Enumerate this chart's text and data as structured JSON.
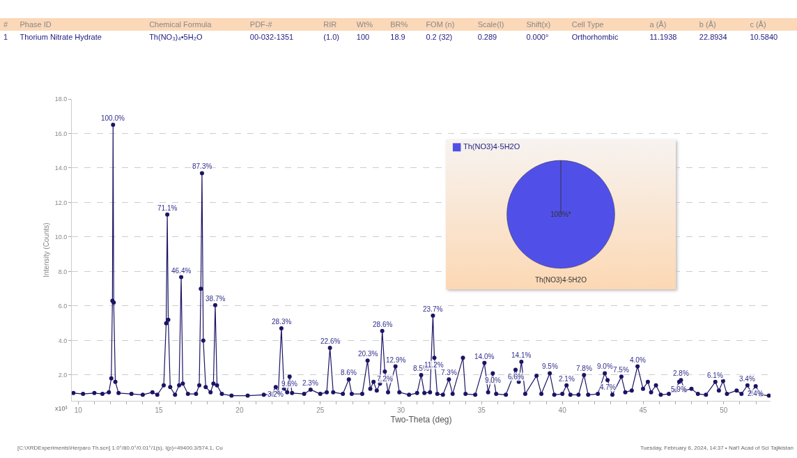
{
  "chart_data": [
    {
      "type": "other",
      "categories": [
        "#",
        "Phase ID",
        "Chemical Formula",
        "PDF-#",
        "RIR",
        "Wt%",
        "BR%",
        "FOM (n)",
        "Scale(I)",
        "Shift(x)",
        "Cell Type",
        "a (Å)",
        "b (Å)",
        "c (Å)"
      ],
      "annotations": [
        "1",
        "Thorium Nitrate Hydrate",
        "Th(NO₃)₄•5H₂O",
        "00-032-1351",
        "(1.0)",
        "100",
        "18.9",
        "0.2 (32)",
        "0.289",
        "0.000°",
        "Orthorhombic",
        "11.1938",
        "22.8934",
        "10.5840"
      ]
    },
    {
      "type": "line",
      "xlabel": "Two-Theta (deg)",
      "ylabel": "Intensity (Counts)",
      "grid": "y",
      "marker": "circle",
      "line_style": "solid",
      "x": [
        9.7,
        10.3,
        11.0,
        11.5,
        11.9,
        12.05,
        12.12,
        12.16,
        12.2,
        12.3,
        12.5,
        13.3,
        14.0,
        14.6,
        14.9,
        15.3,
        15.45,
        15.52,
        15.58,
        15.7,
        16.0,
        16.25,
        16.38,
        16.48,
        16.8,
        17.3,
        17.5,
        17.6,
        17.67,
        17.75,
        17.9,
        18.2,
        18.38,
        18.49,
        18.6,
        18.9,
        19.5,
        20.5,
        21.5,
        22.0,
        22.24,
        22.4,
        22.59,
        22.75,
        22.95,
        23.1,
        23.25,
        24.0,
        24.4,
        25.0,
        25.4,
        25.6,
        25.8,
        26.4,
        26.77,
        26.95,
        27.6,
        27.93,
        28.1,
        28.3,
        28.5,
        28.7,
        28.84,
        29.0,
        29.2,
        29.66,
        29.9,
        30.5,
        31.0,
        31.25,
        31.45,
        31.8,
        31.98,
        32.07,
        32.25,
        32.6,
        32.97,
        33.2,
        33.84,
        34.0,
        34.6,
        35.17,
        35.4,
        35.69,
        35.9,
        36.5,
        37.1,
        37.3,
        37.46,
        37.7,
        38.4,
        38.7,
        39.22,
        39.5,
        40.0,
        40.26,
        40.5,
        41.0,
        41.34,
        41.6,
        42.2,
        42.63,
        42.8,
        43.1,
        43.66,
        43.9,
        44.3,
        44.66,
        45.0,
        45.3,
        45.5,
        45.8,
        46.1,
        46.6,
        47.0,
        47.24,
        47.35,
        47.6,
        48.0,
        48.4,
        48.9,
        49.48,
        49.7,
        49.96,
        50.2,
        50.8,
        51.1,
        51.47,
        51.7,
        51.98,
        52.3,
        52.8
      ],
      "series": [
        {
          "color": "#1b1464",
          "values": [
            0.95,
            0.9,
            0.95,
            0.9,
            1.0,
            1.8,
            6.3,
            16.5,
            6.2,
            1.6,
            0.95,
            0.9,
            0.85,
            1.0,
            0.85,
            1.4,
            5.0,
            11.3,
            5.2,
            1.3,
            0.85,
            1.4,
            7.67,
            1.5,
            0.9,
            0.9,
            1.4,
            7.0,
            13.7,
            4.0,
            1.3,
            1.0,
            1.5,
            6.05,
            1.4,
            0.9,
            0.8,
            0.8,
            0.85,
            0.9,
            1.3,
            1.0,
            4.7,
            1.2,
            1.0,
            1.9,
            0.95,
            0.9,
            1.15,
            0.9,
            1.0,
            3.57,
            1.0,
            0.9,
            1.74,
            0.9,
            0.9,
            2.83,
            1.2,
            1.6,
            1.1,
            1.5,
            4.55,
            2.2,
            1.0,
            2.5,
            1.0,
            0.85,
            0.95,
            2.0,
            0.95,
            1.0,
            5.44,
            3.0,
            0.9,
            0.85,
            1.74,
            0.9,
            3.0,
            0.9,
            0.85,
            2.7,
            1.0,
            2.1,
            0.9,
            0.85,
            2.3,
            1.6,
            2.76,
            0.9,
            1.95,
            0.9,
            2.1,
            0.85,
            0.9,
            1.4,
            0.85,
            0.85,
            2.0,
            0.85,
            0.9,
            2.1,
            1.7,
            0.85,
            1.9,
            1.0,
            1.1,
            2.5,
            1.2,
            1.6,
            1.0,
            1.4,
            0.85,
            0.9,
            1.1,
            1.6,
            1.7,
            1.1,
            1.2,
            0.9,
            0.85,
            1.6,
            1.1,
            1.65,
            0.9,
            1.1,
            0.9,
            1.4,
            1.0,
            1.35,
            0.85,
            0.8
          ]
        }
      ],
      "xlim": [
        9.6,
        52.9
      ],
      "xticks": [
        {
          "value": 10,
          "label": "10"
        },
        {
          "value": 11,
          "label": null
        },
        {
          "value": 12,
          "label": null
        },
        {
          "value": 13,
          "label": null
        },
        {
          "value": 14,
          "label": null
        },
        {
          "value": 15,
          "label": "15"
        },
        {
          "value": 16,
          "label": null
        },
        {
          "value": 17,
          "label": null
        },
        {
          "value": 18,
          "label": null
        },
        {
          "value": 19,
          "label": null
        },
        {
          "value": 20,
          "label": "20"
        },
        {
          "value": 21,
          "label": null
        },
        {
          "value": 22,
          "label": null
        },
        {
          "value": 23,
          "label": null
        },
        {
          "value": 24,
          "label": null
        },
        {
          "value": 25,
          "label": "25"
        },
        {
          "value": 26,
          "label": null
        },
        {
          "value": 27,
          "label": null
        },
        {
          "value": 28,
          "label": null
        },
        {
          "value": 29,
          "label": null
        },
        {
          "value": 30,
          "label": "30"
        },
        {
          "value": 31,
          "label": null
        },
        {
          "value": 32,
          "label": null
        },
        {
          "value": 33,
          "label": null
        },
        {
          "value": 34,
          "label": null
        },
        {
          "value": 35,
          "label": "35"
        },
        {
          "value": 36,
          "label": null
        },
        {
          "value": 37,
          "label": null
        },
        {
          "value": 38,
          "label": null
        },
        {
          "value": 39,
          "label": null
        },
        {
          "value": 40,
          "label": "40"
        },
        {
          "value": 41,
          "label": null
        },
        {
          "value": 42,
          "label": null
        },
        {
          "value": 43,
          "label": null
        },
        {
          "value": 44,
          "label": null
        },
        {
          "value": 45,
          "label": "45"
        },
        {
          "value": 46,
          "label": null
        },
        {
          "value": 47,
          "label": null
        },
        {
          "value": 48,
          "label": null
        },
        {
          "value": 49,
          "label": null
        },
        {
          "value": 50,
          "label": "50"
        },
        {
          "value": 51,
          "label": null
        },
        {
          "value": 52,
          "label": null
        }
      ],
      "ylim": [
        0.5,
        18.0
      ],
      "yticks": [
        {
          "value": 2,
          "label": "2.0"
        },
        {
          "value": 4,
          "label": "4.0"
        },
        {
          "value": 6,
          "label": "6.0"
        },
        {
          "value": 8,
          "label": "8.0"
        },
        {
          "value": 10,
          "label": "10.0"
        },
        {
          "value": 12,
          "label": "12.0"
        },
        {
          "value": 14,
          "label": "14.0"
        },
        {
          "value": 16,
          "label": "16.0"
        },
        {
          "value": 18,
          "label": "18.0"
        }
      ],
      "annotations": [
        "x10³",
        "[C:\\XRDExperiments\\Herparo Th.scn] 1.0°/80.0°/0.01°/1(s), I(p)=49400.3/574.1, Cu",
        "Tuesday, February 6, 2024, 14:37 • Nat'l Acad of Sci Tajikistan",
        {
          "text": "100.0%",
          "x": 12.16,
          "y": 16.5
        },
        {
          "text": "71.1%",
          "x": 15.52,
          "y": 11.3
        },
        {
          "text": "46.4%",
          "x": 16.38,
          "y": 7.67
        },
        {
          "text": "87.3%",
          "x": 17.67,
          "y": 13.7
        },
        {
          "text": "38.7%",
          "x": 18.49,
          "y": 6.05
        },
        {
          "text": "3.2%",
          "x": 22.24,
          "y": 1.3
        },
        {
          "text": "28.3%",
          "x": 22.59,
          "y": 4.7
        },
        {
          "text": "9.6%",
          "x": 23.1,
          "y": 1.9
        },
        {
          "text": "2.3%",
          "x": 24.4,
          "y": 1.15
        },
        {
          "text": "22.6%",
          "x": 25.6,
          "y": 3.57
        },
        {
          "text": "8.6%",
          "x": 26.77,
          "y": 1.74
        },
        {
          "text": "20.3%",
          "x": 27.93,
          "y": 2.83
        },
        {
          "text": "28.6%",
          "x": 28.84,
          "y": 4.55
        },
        {
          "text": "7.2%",
          "x": 29.0,
          "y": 2.2
        },
        {
          "text": "12.9%",
          "x": 29.66,
          "y": 2.5
        },
        {
          "text": "8.5%",
          "x": 31.25,
          "y": 2.0
        },
        {
          "text": "23.7%",
          "x": 31.98,
          "y": 5.44
        },
        {
          "text": "11.2%",
          "x": 32.07,
          "y": 3.0
        },
        {
          "text": "7.3%",
          "x": 32.97,
          "y": 1.74
        },
        {
          "text": "14.0%",
          "x": 35.17,
          "y": 2.7
        },
        {
          "text": "9.0%",
          "x": 35.69,
          "y": 2.1
        },
        {
          "text": "14.1%",
          "x": 37.46,
          "y": 2.76
        },
        {
          "text": "6.6%",
          "x": 37.1,
          "y": 2.3
        },
        {
          "text": "9.5%",
          "x": 39.22,
          "y": 2.1
        },
        {
          "text": "2.1%",
          "x": 40.26,
          "y": 1.4
        },
        {
          "text": "7.8%",
          "x": 41.34,
          "y": 2.0
        },
        {
          "text": "9.0%",
          "x": 42.63,
          "y": 2.1
        },
        {
          "text": "4.7%",
          "x": 42.8,
          "y": 1.7
        },
        {
          "text": "7.5%",
          "x": 43.66,
          "y": 1.9
        },
        {
          "text": "4.0%",
          "x": 44.66,
          "y": 2.5
        },
        {
          "text": "5.9%",
          "x": 47.24,
          "y": 1.6
        },
        {
          "text": "2.8%",
          "x": 47.35,
          "y": 1.7
        },
        {
          "text": "6.1%",
          "x": 49.48,
          "y": 1.6
        },
        {
          "text": "3.4%",
          "x": 51.47,
          "y": 1.4
        },
        {
          "text": "2.4%",
          "x": 51.98,
          "y": 1.35
        }
      ]
    },
    {
      "type": "pie",
      "categories": [
        "Th(NO3)4·5H2O"
      ],
      "values": [
        100
      ],
      "colors": [
        "#5050e8"
      ],
      "value_labels": [
        "100%*"
      ],
      "legend": "top left"
    }
  ]
}
